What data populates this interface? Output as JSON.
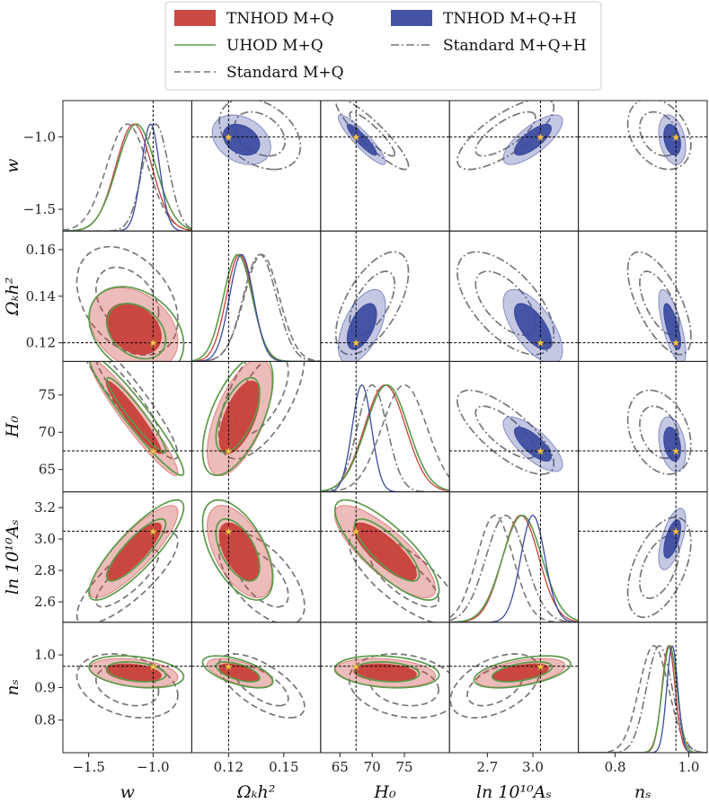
{
  "chart_data": {
    "type": "corner",
    "parameters": [
      {
        "key": "w",
        "label": "w",
        "range": [
          -1.7,
          -0.7
        ],
        "ticks": [
          -1.5,
          -1.0
        ],
        "tick_labels": [
          "−1.5",
          "−1.0"
        ],
        "truth": -1.0
      },
      {
        "key": "omch2",
        "label": "Ωₖh²",
        "range": [
          0.1,
          0.17
        ],
        "ticks": [
          0.12,
          0.15
        ],
        "tick_labels": [
          "0.12",
          "0.15"
        ],
        "truth": 0.12
      },
      {
        "key": "H0",
        "label": "H₀",
        "range": [
          62,
          82
        ],
        "ticks": [
          65,
          70,
          75
        ],
        "tick_labels": [
          "65",
          "70",
          "75"
        ],
        "truth": 67.5
      },
      {
        "key": "lnAs",
        "label": "ln 10¹⁰Aₛ",
        "range": [
          2.45,
          3.3
        ],
        "ticks": [
          2.7,
          3.0
        ],
        "tick_labels": [
          "2.7",
          "3.0"
        ],
        "truth": 3.05
      },
      {
        "key": "ns",
        "label": "nₛ",
        "range": [
          0.7,
          1.05
        ],
        "ticks": [
          0.8,
          1.0
        ],
        "tick_labels": [
          "0.8",
          "1.0"
        ],
        "truth": 0.965
      }
    ],
    "row_ticks": [
      {
        "ticks": [
          -1.5,
          -1.0
        ],
        "tick_labels": [
          "−1.5",
          "−1.0"
        ],
        "range": [
          -1.65,
          -0.75
        ]
      },
      {
        "ticks": [
          0.12,
          0.14,
          0.16
        ],
        "tick_labels": [
          "0.12",
          "0.14",
          "0.16"
        ],
        "range": [
          0.112,
          0.168
        ]
      },
      {
        "ticks": [
          65,
          70,
          75
        ],
        "tick_labels": [
          "65",
          "70",
          "75"
        ],
        "range": [
          62,
          79.5
        ]
      },
      {
        "ticks": [
          2.6,
          2.8,
          3.0,
          3.2
        ],
        "tick_labels": [
          "2.6",
          "2.8",
          "3.0",
          "3.2"
        ],
        "range": [
          2.47,
          3.3
        ]
      },
      {
        "ticks": [
          0.8,
          0.9,
          1.0
        ],
        "tick_labels": [
          "0.8",
          "0.9",
          "1.0"
        ],
        "range": [
          0.7,
          1.1
        ]
      }
    ],
    "series": [
      {
        "name": "TNHOD M+Q",
        "style": "filled",
        "color": "#c8403a",
        "inner_opacity": 0.95,
        "outer_opacity": 0.35,
        "mean": [
          -1.15,
          0.126,
          72.0,
          2.92,
          0.945
        ],
        "sd": [
          0.14,
          0.0072,
          3.2,
          0.12,
          0.018
        ],
        "rho": {
          "0-1": -0.3,
          "0-2": -0.95,
          "0-3": 0.85,
          "0-4": -0.3,
          "1-2": 0.6,
          "1-3": -0.55,
          "1-4": -0.6,
          "2-3": -0.8,
          "2-4": -0.2,
          "3-4": 0.5
        }
      },
      {
        "name": "UHOD M+Q",
        "style": "line",
        "color": "#5c9a4a",
        "dash": "",
        "mean": [
          -1.13,
          0.125,
          72.3,
          2.93,
          0.948
        ],
        "sd": [
          0.15,
          0.0078,
          3.3,
          0.13,
          0.02
        ],
        "rho": {
          "0-1": -0.3,
          "0-2": -0.95,
          "0-3": 0.85,
          "0-4": -0.3,
          "1-2": 0.6,
          "1-3": -0.55,
          "1-4": -0.6,
          "2-3": -0.8,
          "2-4": -0.2,
          "3-4": 0.5
        }
      },
      {
        "name": "Standard M+Q",
        "style": "line",
        "color": "#777777",
        "dash": "7,4",
        "mean": [
          -1.2,
          0.138,
          75.0,
          2.75,
          0.905
        ],
        "sd": [
          0.16,
          0.0095,
          3.5,
          0.12,
          0.04
        ],
        "rho": {
          "0-1": -0.35,
          "0-2": -0.93,
          "0-3": 0.8,
          "0-4": -0.3,
          "1-2": 0.6,
          "1-3": -0.6,
          "1-4": -0.65,
          "2-3": -0.75,
          "2-4": -0.2,
          "3-4": 0.45
        }
      },
      {
        "name": "TNHOD M+Q+H",
        "style": "filled",
        "color": "#3a4a9e",
        "inner_opacity": 0.92,
        "outer_opacity": 0.3,
        "mean": [
          -1.02,
          0.127,
          68.4,
          3.0,
          0.955
        ],
        "sd": [
          0.07,
          0.0065,
          1.5,
          0.08,
          0.015
        ],
        "rho": {
          "0-1": -0.3,
          "0-2": -0.9,
          "0-3": 0.75,
          "0-4": -0.3,
          "1-2": 0.55,
          "1-3": -0.65,
          "1-4": -0.7,
          "2-3": -0.75,
          "2-4": -0.3,
          "3-4": 0.6
        }
      },
      {
        "name": "Standard M+Q+H",
        "style": "line",
        "color": "#777777",
        "dash": "9,3,2,3",
        "mean": [
          -0.98,
          0.137,
          70.0,
          2.82,
          0.92
        ],
        "sd": [
          0.1,
          0.009,
          2.3,
          0.13,
          0.035
        ],
        "rho": {
          "0-1": -0.35,
          "0-2": -0.9,
          "0-3": 0.75,
          "0-4": -0.3,
          "1-2": 0.6,
          "1-3": -0.6,
          "1-4": -0.65,
          "2-3": -0.75,
          "2-4": -0.3,
          "3-4": 0.5
        }
      }
    ],
    "legend": {
      "placement": "top-center",
      "columns": [
        [
          "TNHOD M+Q",
          "UHOD M+Q",
          "Standard M+Q"
        ],
        [
          "TNHOD M+Q+H",
          "Standard M+Q+H"
        ]
      ]
    }
  }
}
